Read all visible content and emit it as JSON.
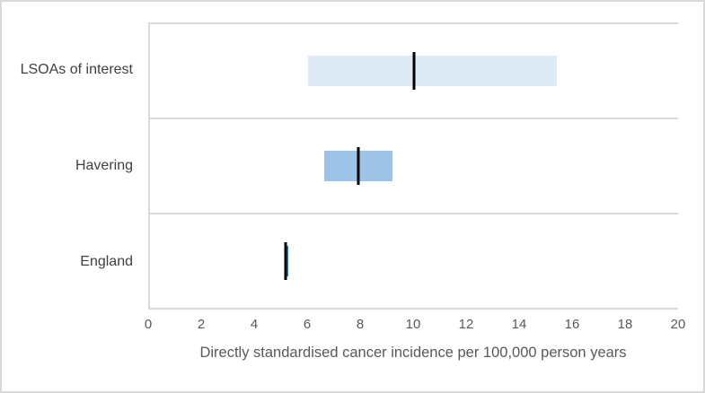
{
  "figure": {
    "background": "#ffffff",
    "border_color": "#d9d9d9",
    "axis_line_color": "#d9d9d9",
    "tick_label_color": "#595959",
    "category_label_color": "#404040",
    "marker_color": "#000000"
  },
  "chart_data": {
    "type": "bar",
    "subtype": "horizontal-interval-plot",
    "title": "",
    "xlabel": "Directly standardised cancer incidence per 100,000 person years",
    "ylabel": "",
    "xlim": [
      0,
      20
    ],
    "xticks": [
      0,
      2,
      4,
      6,
      8,
      10,
      12,
      14,
      16,
      18,
      20
    ],
    "grid": false,
    "legend": "none",
    "categories": [
      "LSOAs of interest",
      "Havering",
      "England"
    ],
    "series": [
      {
        "name": "LSOAs of interest",
        "ci_low": 6.0,
        "ci_high": 15.4,
        "point": 10.0,
        "bar_color": "#deebf7"
      },
      {
        "name": "Havering",
        "ci_low": 6.6,
        "ci_high": 9.2,
        "point": 7.9,
        "bar_color": "#9dc3e6"
      },
      {
        "name": "England",
        "ci_low": 5.1,
        "ci_high": 5.25,
        "point": 5.12,
        "bar_color": "#2e75b6"
      }
    ],
    "marker_meaning": "point estimate (black line) with confidence interval bar"
  }
}
